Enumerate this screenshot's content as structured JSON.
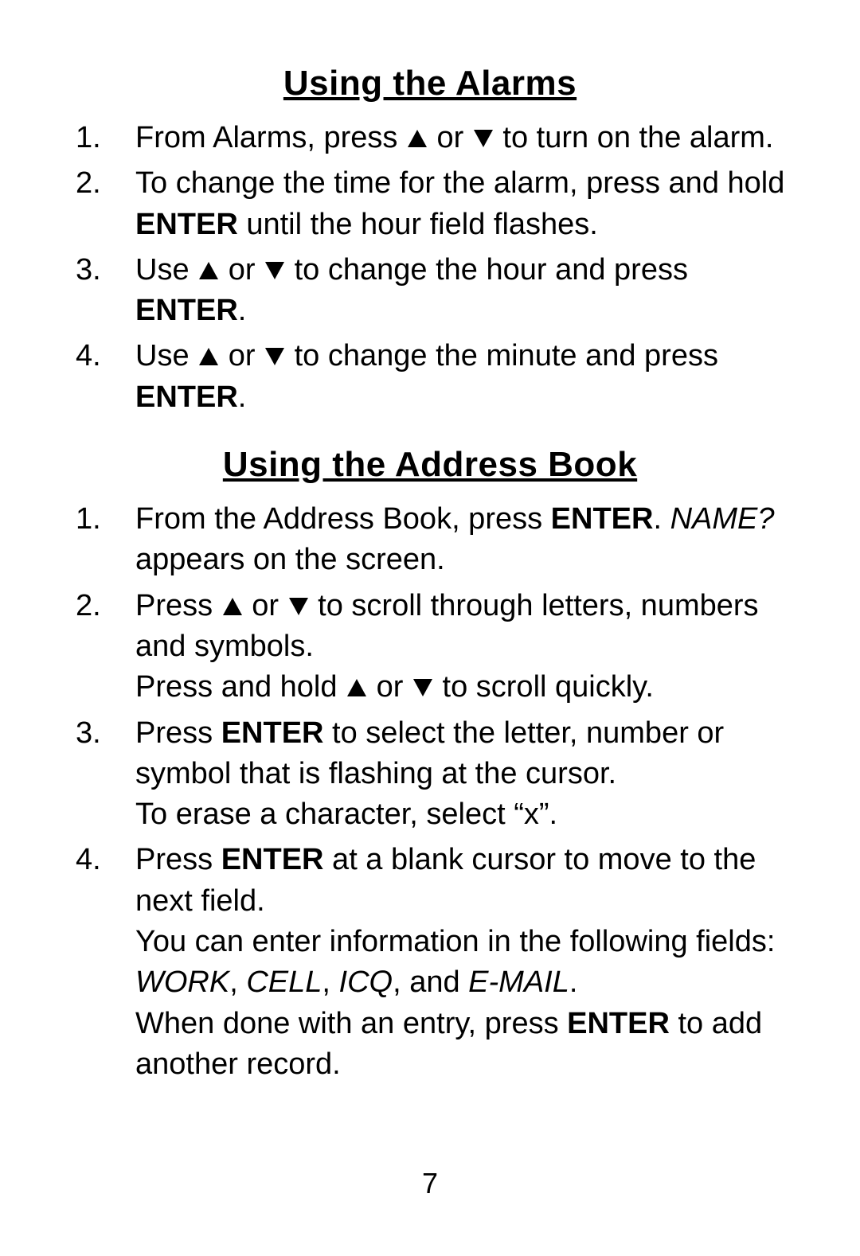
{
  "page_number": "7",
  "icons": {
    "up_fill": "#000000",
    "down_fill": "#000000"
  },
  "sections": [
    {
      "title": "Using the Alarms",
      "items": [
        {
          "runs": [
            {
              "t": "From Alarms, press "
            },
            {
              "icon": "up"
            },
            {
              "t": " or "
            },
            {
              "icon": "down"
            },
            {
              "t": " to turn on the alarm."
            }
          ]
        },
        {
          "runs": [
            {
              "t": "To change the time for the alarm, press and hold "
            },
            {
              "t": "ENTER",
              "b": true
            },
            {
              "t": " until the hour field flashes."
            }
          ]
        },
        {
          "runs": [
            {
              "t": "Use "
            },
            {
              "icon": "up"
            },
            {
              "t": " or "
            },
            {
              "icon": "down"
            },
            {
              "t": " to change the hour and press "
            },
            {
              "t": "ENTER",
              "b": true
            },
            {
              "t": "."
            }
          ]
        },
        {
          "runs": [
            {
              "t": "Use "
            },
            {
              "icon": "up"
            },
            {
              "t": " or "
            },
            {
              "icon": "down"
            },
            {
              "t": " to change the minute and press "
            },
            {
              "t": "ENTER",
              "b": true
            },
            {
              "t": "."
            }
          ]
        }
      ]
    },
    {
      "title": "Using the Address Book",
      "items": [
        {
          "runs": [
            {
              "t": "From the Address Book, press "
            },
            {
              "t": "ENTER",
              "b": true
            },
            {
              "t": ". "
            },
            {
              "t": "NAME?",
              "i": true
            },
            {
              "t": " appears on the screen."
            }
          ]
        },
        {
          "runs": [
            {
              "t": "Press "
            },
            {
              "icon": "up"
            },
            {
              "t": " or "
            },
            {
              "icon": "down"
            },
            {
              "t": " to scroll through letters, numbers and symbols."
            },
            {
              "br": true
            },
            {
              "t": "Press and hold "
            },
            {
              "icon": "up"
            },
            {
              "t": " or "
            },
            {
              "icon": "down"
            },
            {
              "t": " to scroll quickly."
            }
          ]
        },
        {
          "runs": [
            {
              "t": "Press "
            },
            {
              "t": "ENTER",
              "b": true
            },
            {
              "t": " to select the letter, number or symbol that is flashing at the cursor."
            },
            {
              "br": true
            },
            {
              "t": "To erase a character, select “x”."
            }
          ]
        },
        {
          "runs": [
            {
              "t": "Press "
            },
            {
              "t": "ENTER",
              "b": true
            },
            {
              "t": " at a blank cursor to move to the next field."
            },
            {
              "br": true
            },
            {
              "t": "You can enter information in the following fields: "
            },
            {
              "t": "WORK",
              "i": true
            },
            {
              "t": ", "
            },
            {
              "t": "CELL",
              "i": true
            },
            {
              "t": ", "
            },
            {
              "t": "ICQ",
              "i": true
            },
            {
              "t": ", and "
            },
            {
              "t": "E-MAIL",
              "i": true
            },
            {
              "t": "."
            },
            {
              "br": true
            },
            {
              "t": "When done with an entry, press "
            },
            {
              "t": "ENTER",
              "b": true
            },
            {
              "t": " to add another record."
            }
          ]
        }
      ]
    }
  ]
}
